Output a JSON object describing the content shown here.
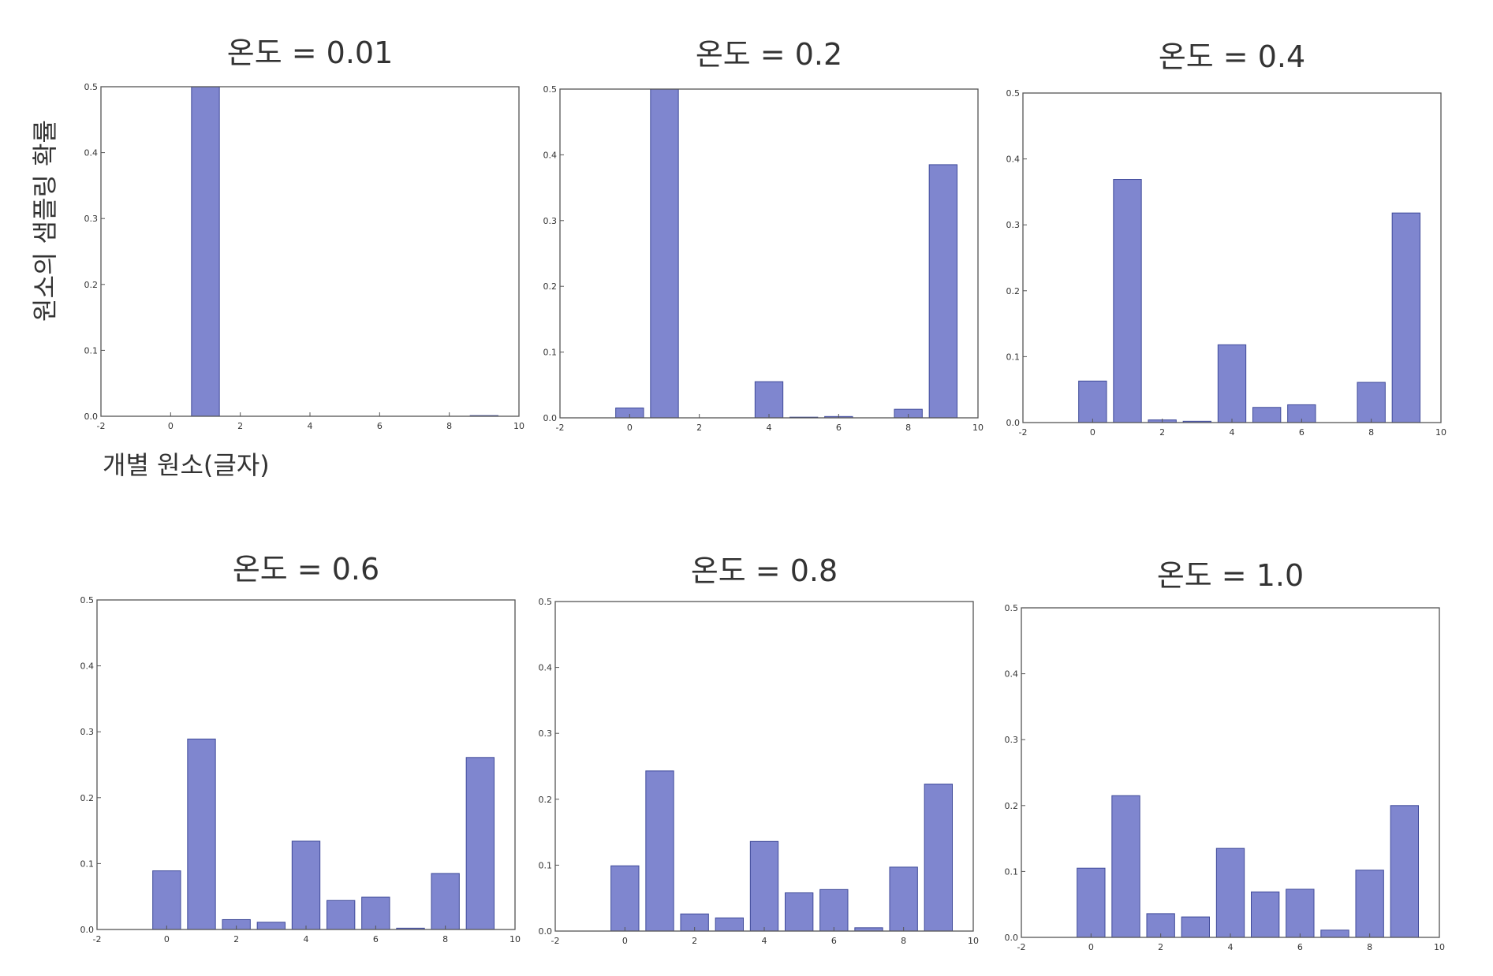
{
  "figure": {
    "ylabel": "원소의 샘플링 확률",
    "xlabel": "개별 원소(글자)"
  },
  "colors": {
    "bar": "#7f86cf",
    "bar_edge": "#3f4a9a",
    "frame": "#555555"
  },
  "chart_data": [
    {
      "type": "bar",
      "title": "온도 = 0.01",
      "x": [
        0,
        1,
        2,
        3,
        4,
        5,
        6,
        7,
        8,
        9
      ],
      "values": [
        0.0,
        0.5,
        0.0,
        0.0,
        0.0,
        0.0,
        0.0,
        0.0,
        0.0,
        0.001
      ],
      "xlim": [
        -2,
        10
      ],
      "ylim": [
        0,
        0.5
      ],
      "xticks": [
        "-2",
        "0",
        "2",
        "4",
        "6",
        "8",
        "10"
      ],
      "yticks": [
        "0.0",
        "0.1",
        "0.2",
        "0.3",
        "0.4",
        "0.5"
      ],
      "grid": false
    },
    {
      "type": "bar",
      "title": "온도 = 0.2",
      "x": [
        0,
        1,
        2,
        3,
        4,
        5,
        6,
        7,
        8,
        9
      ],
      "values": [
        0.015,
        0.5,
        0.0,
        0.0,
        0.055,
        0.001,
        0.002,
        0.0,
        0.013,
        0.385
      ],
      "xlim": [
        -2,
        10
      ],
      "ylim": [
        0,
        0.5
      ],
      "xticks": [
        "-2",
        "0",
        "2",
        "4",
        "6",
        "8",
        "10"
      ],
      "yticks": [
        "0.0",
        "0.1",
        "0.2",
        "0.3",
        "0.4",
        "0.5"
      ],
      "grid": false
    },
    {
      "type": "bar",
      "title": "온도 = 0.4",
      "x": [
        0,
        1,
        2,
        3,
        4,
        5,
        6,
        7,
        8,
        9
      ],
      "values": [
        0.063,
        0.369,
        0.004,
        0.002,
        0.118,
        0.023,
        0.027,
        0.0,
        0.061,
        0.318
      ],
      "xlim": [
        -2,
        10
      ],
      "ylim": [
        0,
        0.5
      ],
      "xticks": [
        "-2",
        "0",
        "2",
        "4",
        "6",
        "8",
        "10"
      ],
      "yticks": [
        "0.0",
        "0.1",
        "0.2",
        "0.3",
        "0.4",
        "0.5"
      ],
      "grid": false
    },
    {
      "type": "bar",
      "title": "온도 = 0.6",
      "x": [
        0,
        1,
        2,
        3,
        4,
        5,
        6,
        7,
        8,
        9
      ],
      "values": [
        0.089,
        0.289,
        0.015,
        0.011,
        0.134,
        0.044,
        0.049,
        0.002,
        0.085,
        0.261
      ],
      "xlim": [
        -2,
        10
      ],
      "ylim": [
        0,
        0.5
      ],
      "xticks": [
        "-2",
        "0",
        "2",
        "4",
        "6",
        "8",
        "10"
      ],
      "yticks": [
        "0.0",
        "0.1",
        "0.2",
        "0.3",
        "0.4",
        "0.5"
      ],
      "grid": false
    },
    {
      "type": "bar",
      "title": "온도 = 0.8",
      "x": [
        0,
        1,
        2,
        3,
        4,
        5,
        6,
        7,
        8,
        9
      ],
      "values": [
        0.099,
        0.243,
        0.026,
        0.02,
        0.136,
        0.058,
        0.063,
        0.005,
        0.097,
        0.223
      ],
      "xlim": [
        -2,
        10
      ],
      "ylim": [
        0,
        0.5
      ],
      "xticks": [
        "-2",
        "0",
        "2",
        "4",
        "6",
        "8",
        "10"
      ],
      "yticks": [
        "0.0",
        "0.1",
        "0.2",
        "0.3",
        "0.4",
        "0.5"
      ],
      "grid": false
    },
    {
      "type": "bar",
      "title": "온도 = 1.0",
      "x": [
        0,
        1,
        2,
        3,
        4,
        5,
        6,
        7,
        8,
        9
      ],
      "values": [
        0.105,
        0.215,
        0.036,
        0.031,
        0.135,
        0.069,
        0.073,
        0.011,
        0.102,
        0.2
      ],
      "xlim": [
        -2,
        10
      ],
      "ylim": [
        0,
        0.5
      ],
      "xticks": [
        "-2",
        "0",
        "2",
        "4",
        "6",
        "8",
        "10"
      ],
      "yticks": [
        "0.0",
        "0.1",
        "0.2",
        "0.3",
        "0.4",
        "0.5"
      ],
      "grid": false
    }
  ]
}
